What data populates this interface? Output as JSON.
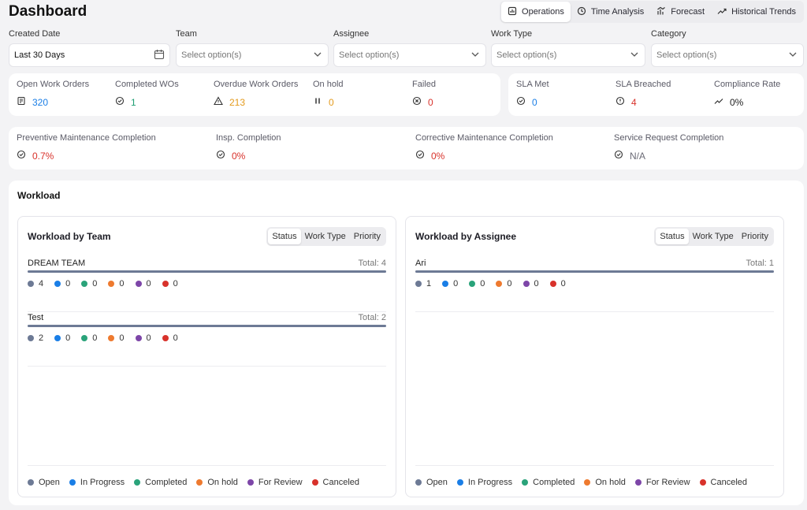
{
  "header": {
    "title": "Dashboard"
  },
  "nav": {
    "tabs": [
      {
        "label": "Operations",
        "icon": "operations-icon",
        "active": true
      },
      {
        "label": "Time Analysis",
        "icon": "clock-icon",
        "active": false
      },
      {
        "label": "Forecast",
        "icon": "forecast-icon",
        "active": false
      },
      {
        "label": "Historical Trends",
        "icon": "trend-icon",
        "active": false
      }
    ]
  },
  "filters": {
    "created_date": {
      "label": "Created Date",
      "value": "Last 30 Days"
    },
    "team": {
      "label": "Team",
      "placeholder": "Select option(s)"
    },
    "assignee": {
      "label": "Assignee",
      "placeholder": "Select option(s)"
    },
    "work_type": {
      "label": "Work Type",
      "placeholder": "Select option(s)"
    },
    "category": {
      "label": "Category",
      "placeholder": "Select option(s)"
    }
  },
  "kpis": {
    "open": {
      "label": "Open Work Orders",
      "value": "320"
    },
    "completed": {
      "label": "Completed WOs",
      "value": "1"
    },
    "overdue": {
      "label": "Overdue Work Orders",
      "value": "213"
    },
    "on_hold": {
      "label": "On hold",
      "value": "0"
    },
    "failed": {
      "label": "Failed",
      "value": "0"
    },
    "sla_met": {
      "label": "SLA Met",
      "value": "0"
    },
    "sla_breached": {
      "label": "SLA Breached",
      "value": "4"
    },
    "compliance": {
      "label": "Compliance Rate",
      "value": "0%"
    },
    "preventive": {
      "label": "Preventive Maintenance Completion",
      "value": "0.7%"
    },
    "insp": {
      "label": "Insp. Completion",
      "value": "0%"
    },
    "corrective": {
      "label": "Corrective Maintenance Completion",
      "value": "0%"
    },
    "service": {
      "label": "Service Request Completion",
      "value": "N/A"
    }
  },
  "workload": {
    "title": "Workload",
    "by_team": {
      "title": "Workload by Team",
      "groups": [
        {
          "name": "DREAM TEAM",
          "total": "Total: 4",
          "counts": [
            "4",
            "0",
            "0",
            "0",
            "0",
            "0"
          ],
          "fill": 1.0
        },
        {
          "name": "Test",
          "total": "Total: 2",
          "counts": [
            "2",
            "0",
            "0",
            "0",
            "0",
            "0"
          ],
          "fill": 1.0
        }
      ]
    },
    "by_assignee": {
      "title": "Workload by Assignee",
      "groups": [
        {
          "name": "Ari",
          "total": "Total: 1",
          "counts": [
            "1",
            "0",
            "0",
            "0",
            "0",
            "0"
          ],
          "fill": 1.0
        }
      ]
    },
    "segments": [
      "Status",
      "Work Type",
      "Priority"
    ],
    "legend": [
      {
        "label": "Open",
        "color": "#6d7a95"
      },
      {
        "label": "In Progress",
        "color": "#1a7ee6"
      },
      {
        "label": "Completed",
        "color": "#2aa37a"
      },
      {
        "label": "On hold",
        "color": "#ee7a2f"
      },
      {
        "label": "For Review",
        "color": "#7d46a8"
      },
      {
        "label": "Canceled",
        "color": "#d8322b"
      }
    ]
  }
}
